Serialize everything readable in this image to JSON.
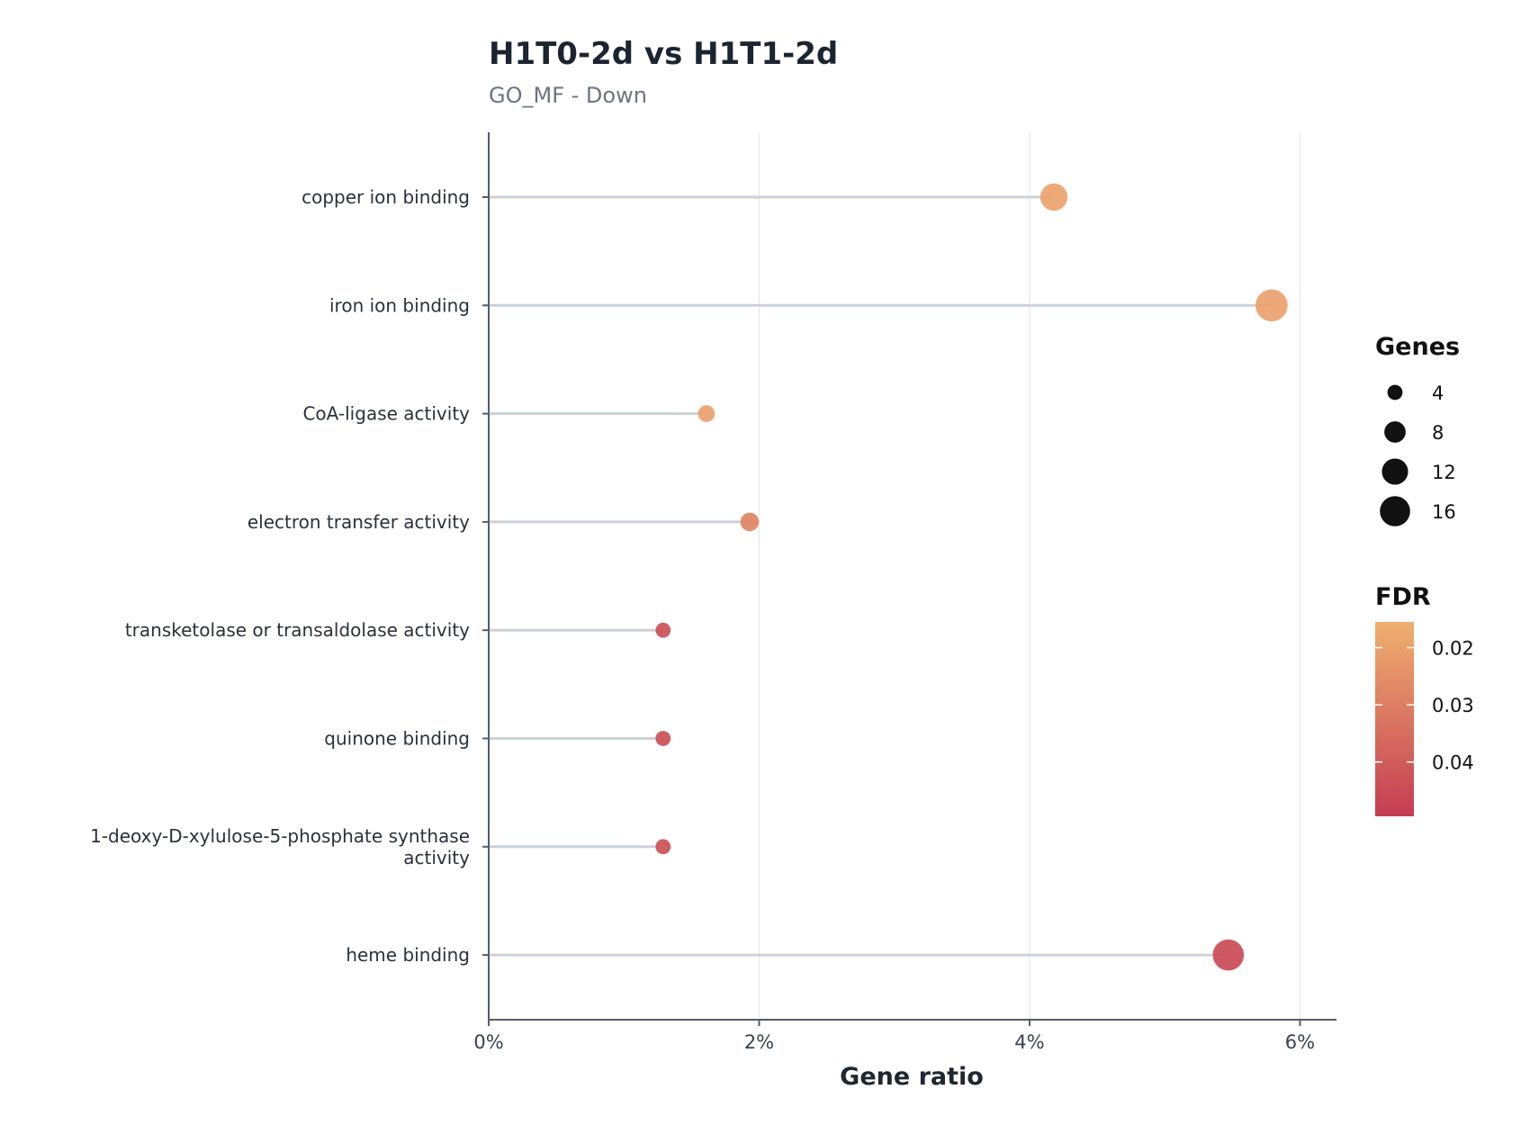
{
  "chart_data": {
    "type": "scatter",
    "title": "H1T0-2d vs H1T1-2d",
    "subtitle": "GO_MF - Down",
    "xlabel": "Gene ratio",
    "ylabel": "",
    "xlim": [
      0,
      0.0625
    ],
    "x_ticks": [
      0,
      0.02,
      0.04,
      0.06
    ],
    "x_tick_labels": [
      "0%",
      "2%",
      "4%",
      "6%"
    ],
    "grid": "vertical",
    "categories": [
      "copper ion binding",
      "iron ion binding",
      "CoA-ligase activity",
      "electron transfer activity",
      "transketolase or transaldolase activity",
      "quinone binding",
      "1-deoxy-D-xylulose-5-phosphate synthase activity",
      "heme binding"
    ],
    "category_lines": [
      [
        "copper ion binding"
      ],
      [
        "iron ion binding"
      ],
      [
        "CoA-ligase activity"
      ],
      [
        "electron transfer activity"
      ],
      [
        "transketolase or transaldolase activity"
      ],
      [
        "quinone binding"
      ],
      [
        "1-deoxy-D-xylulose-5-phosphate synthase",
        "activity"
      ],
      [
        "heme binding"
      ]
    ],
    "gene_ratio": [
      0.0418,
      0.0579,
      0.0161,
      0.0193,
      0.0129,
      0.0129,
      0.0129,
      0.0547
    ],
    "genes": [
      13,
      18,
      5,
      6,
      4,
      4,
      4,
      17
    ],
    "fdr": [
      0.0195,
      0.02,
      0.0205,
      0.029,
      0.044,
      0.044,
      0.044,
      0.045
    ],
    "size_legend": {
      "title": "Genes",
      "values": [
        4,
        8,
        12,
        16
      ],
      "labels": [
        "4",
        "8",
        "12",
        "16"
      ],
      "position": "right"
    },
    "color_legend": {
      "title": "FDR",
      "ticks": [
        0.02,
        0.03,
        0.04
      ],
      "labels": [
        "0.02",
        "0.03",
        "0.04"
      ],
      "range": [
        0.0155,
        0.0495
      ],
      "low_color": "#f0b070",
      "high_color": "#c43c52",
      "position": "right"
    },
    "stem_color": "#cbd1d8",
    "axis_color": "#555d66",
    "grid_color": "#e8ebee"
  }
}
